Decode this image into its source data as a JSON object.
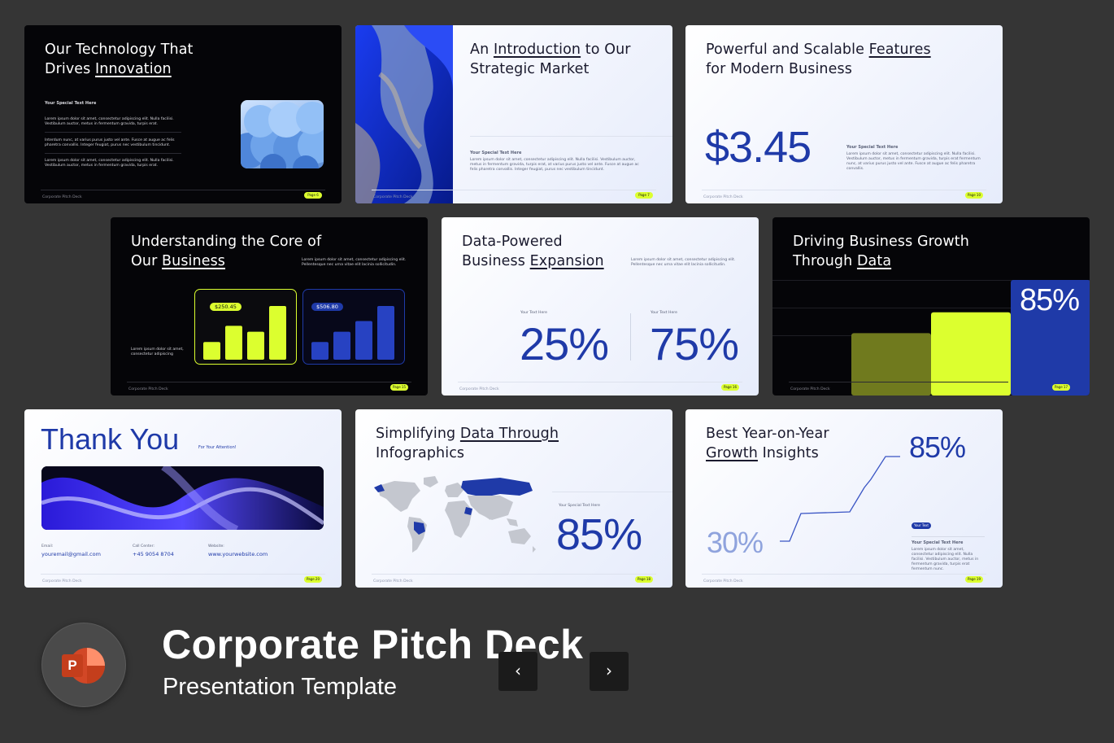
{
  "slides": {
    "s1": {
      "title_a": "Our Technology That",
      "title_b": "Drives ",
      "title_u": "Innovation",
      "label": "Your Special Text Here",
      "p1": "Lorem ipsum dolor sit amet, consectetur adipiscing elit. Nulla facilisi. Vestibulum auctor, metus in fermentum gravida, turpis erat.",
      "p2": "Interdum nunc, at varius purus justo vel ante. Fusce at augue ac felis pharetra convallis. Integer feugiat, purus nec vestibulum tincidunt.",
      "p3": "Lorem ipsum dolor sit amet, consectetur adipiscing elit. Nulla facilisi. Vestibulum auctor, metus in fermentum gravida, turpis erat.",
      "footer": "Corporate Pitch Deck",
      "page": "Page 6"
    },
    "s2": {
      "title_a": "An ",
      "title_u": "Introduction",
      "title_b": " to Our",
      "title_c": "Strategic Market",
      "label": "Your Special Text Here",
      "p1": "Lorem ipsum dolor sit amet, consectetur adipiscing elit. Nulla facilisi. Vestibulum auctor, metus in fermentum gravida, turpis erat, at varius purus justo vel ante. Fusce at augue ac felis pharetra convallis. Integer feugiat, purus nec vestibulum tincidunt.",
      "footer": "Corporate Pitch Deck",
      "page": "Page 7"
    },
    "s3": {
      "title_a": "Powerful and Scalable ",
      "title_u": "Features",
      "title_b": "for Modern Business",
      "big": "$3.45",
      "label": "Your Special Text Here",
      "p1": "Lorem ipsum dolor sit amet, consectetur adipiscing elit. Nulla facilisi. Vestibulum auctor, metus in fermentum gravida, turpis erat fermentum nunc, at varius purus justo vel ante. Fusce at augue ac felis pharetra convallis.",
      "footer": "Corporate Pitch Deck",
      "page": "Page 10"
    },
    "s4": {
      "title_a": "Understanding the Core of",
      "title_b": "Our ",
      "title_u": "Business",
      "p_top": "Lorem ipsum dolor sit amet, consectetur adipiscing elit. Pellentesque nec urna vitae elit lacinia sollicitudin.",
      "p_left": "Lorem ipsum dolor sit amet, consectetur adipiscing",
      "chip1": "$250.45",
      "chip2": "$506.80",
      "bars1": [
        0.33,
        0.63,
        0.52,
        1.0
      ],
      "bars2": [
        0.33,
        0.52,
        0.72,
        1.0
      ],
      "footer": "Corporate Pitch Deck",
      "page": "Page 15"
    },
    "s5": {
      "title_a": "Data-Powered",
      "title_b": "Business ",
      "title_u": "Expansion",
      "p_top": "Lorem ipsum dolor sit amet, consectetur adipiscing elit. Pellentesque nec urna vitae elit lacinia sollicitudin.",
      "label1": "Your Text Here",
      "num1": "25%",
      "label2": "Your Text Here",
      "num2": "75%",
      "footer": "Corporate Pitch Deck",
      "page": "Page 16"
    },
    "s6": {
      "title_a": "Driving Business Growth",
      "title_b": "Through ",
      "title_u": "Data",
      "big": "85%",
      "bars": [
        0.54,
        0.72,
        1.0
      ],
      "footer": "Corporate Pitch Deck",
      "page": "Page 17"
    },
    "s7": {
      "title": "Thank You",
      "subtitle": "For Your Attention!",
      "email_label": "Email:",
      "email": "youremail@gmail.com",
      "call_label": "Call Center:",
      "call": "+45 9054 8704",
      "web_label": "Website:",
      "web": "www.yourwebsite.com",
      "footer": "Corporate Pitch Deck",
      "page": "Page 20"
    },
    "s8": {
      "title_a": "Simplifying ",
      "title_u": "Data Through",
      "title_b": "Infographics",
      "label": "Your Special Text Here",
      "big": "85%",
      "footer": "Corporate Pitch Deck",
      "page": "Page 18"
    },
    "s9": {
      "title_a": "Best Year-on-Year",
      "title_u": "Growth",
      "title_b": " Insights",
      "num_top": "85%",
      "num_bottom": "30%",
      "pill": "Your Text",
      "label": "Your Special Text Here",
      "p1": "Lorem ipsum dolor sit amet, consectetur adipiscing elit. Nulla facilisi. Vestibulum auctor, metus in fermentum gravida, turpis erat fermentum nunc.",
      "footer": "Corporate Pitch Deck",
      "page": "Page 19"
    }
  },
  "brand": {
    "title": "Corporate Pitch Deck",
    "subtitle": "Presentation Template",
    "app_icon": "powerpoint-icon",
    "app_letter": "P"
  },
  "nav": {
    "prev": "‹",
    "next": "›"
  },
  "colors": {
    "background": "#353535",
    "accent_blue": "#1f3aa8",
    "accent_lime": "#dcff2f",
    "dark_slide": "#050508"
  }
}
